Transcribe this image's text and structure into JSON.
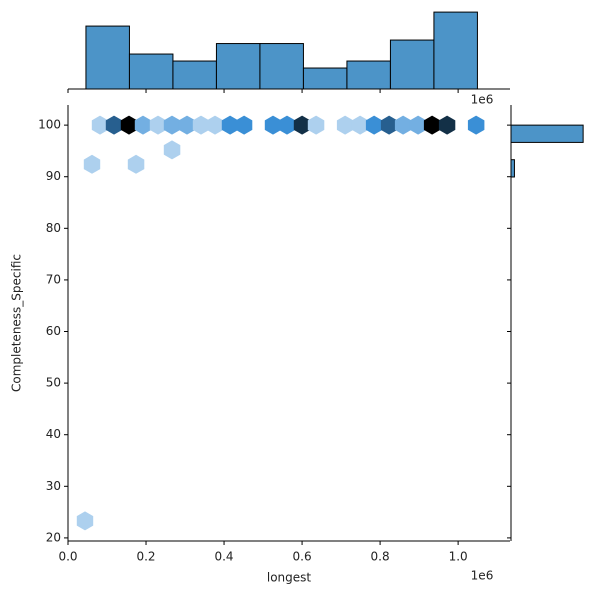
{
  "chart_data": {
    "type": "hexbin",
    "x_label": "longest",
    "y_label": "Completeness_Specific",
    "x_offset_label": "1e6",
    "xlim": [
      0,
      1133000
    ],
    "ylim": [
      19.4,
      103.9
    ],
    "xticks": [
      {
        "value": 0,
        "label": "0.0"
      },
      {
        "value": 200000,
        "label": "0.2"
      },
      {
        "value": 400000,
        "label": "0.4"
      },
      {
        "value": 600000,
        "label": "0.6"
      },
      {
        "value": 800000,
        "label": "0.8"
      },
      {
        "value": 1000000,
        "label": "1.0"
      }
    ],
    "yticks": [
      20,
      30,
      40,
      50,
      60,
      70,
      80,
      90,
      100
    ],
    "cmap": [
      "#e6f0fa",
      "#3a8fd6",
      "#000000"
    ],
    "count_max": 6,
    "x": [
      82000,
      118000,
      156400,
      192300,
      230800,
      266700,
      305100,
      341000,
      376900,
      415400,
      451300,
      525600,
      561500,
      600000,
      635900,
      710300,
      748700,
      784600,
      823100,
      859000,
      897400,
      933300,
      971800,
      1046200,
      61500,
      174400,
      266700,
      43600
    ],
    "y": [
      100,
      100,
      100,
      100,
      100,
      100,
      100,
      100,
      100,
      100,
      100,
      100,
      100,
      100,
      100,
      100,
      100,
      100,
      100,
      100,
      100,
      100,
      100,
      100,
      92.4,
      92.4,
      95.2,
      23.3
    ],
    "counts": [
      1,
      4,
      6,
      2,
      1,
      2,
      2,
      1,
      1,
      3,
      3,
      3,
      3,
      5,
      1,
      1,
      1,
      3,
      4,
      2,
      2,
      6,
      5,
      3,
      1,
      1,
      1,
      1
    ],
    "hist_color": "#4c94c8",
    "top_hist": {
      "bins": [
        46000,
        157500,
        269000,
        380500,
        492000,
        603500,
        715000,
        826500,
        938000,
        1049500
      ],
      "counts": [
        9,
        5,
        4,
        6.5,
        6.5,
        3,
        4,
        7,
        11
      ],
      "ylim": [
        0,
        11.3
      ]
    },
    "right_hist": {
      "bins": [
        89.95,
        93.3,
        96.65,
        100.0
      ],
      "counts": [
        1,
        0,
        21
      ],
      "xlim": [
        0,
        23
      ]
    }
  }
}
